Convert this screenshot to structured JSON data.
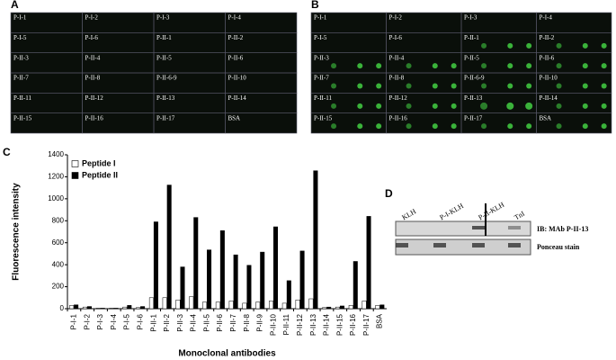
{
  "panel_a": {
    "label": "A",
    "cells": [
      "P-I-1",
      "P-I-2",
      "P-I-3",
      "P-I-4",
      "P-I-5",
      "P-I-6",
      "P-II-1",
      "P-II-2",
      "P-II-3",
      "P-II-4",
      "P-II-5",
      "P-II-6",
      "P-II-7",
      "P-II-8",
      "P-II-6-9",
      "P-II-10",
      "P-II-11",
      "P-II-12",
      "P-II-13",
      "P-II-14",
      "P-II-15",
      "P-II-16",
      "P-II-17",
      "BSA"
    ]
  },
  "panel_b": {
    "label": "B",
    "cells": [
      "P-I-1",
      "P-I-2",
      "P-I-3",
      "P-I-4",
      "P-I-5",
      "P-I-6",
      "P-II-1",
      "P-II-2",
      "P-II-3",
      "P-II-4",
      "P-II-5",
      "P-II-6",
      "P-II-7",
      "P-II-8",
      "P-II-6-9",
      "P-II-10",
      "P-II-11",
      "P-II-12",
      "P-II-13",
      "P-II-14",
      "P-II-15",
      "P-II-16",
      "P-II-17",
      "BSA"
    ]
  },
  "panel_d": {
    "label": "D",
    "lanes": [
      "KLH",
      "P-I-KLH",
      "P-II-KLH",
      "TnI"
    ],
    "rows": [
      "IB: MAb P-II-13",
      "Ponceau stain"
    ]
  },
  "chart_data": {
    "type": "bar",
    "panel_label": "C",
    "y_label": "Fluorescence intensity",
    "x_label": "Monoclonal antibodies",
    "categories": [
      "P-I-1",
      "P-I-2",
      "P-I-3",
      "P-I-4",
      "P-I-5",
      "P-I-6",
      "P-II-1",
      "P-II-2",
      "P-II-3",
      "P-II-4",
      "P-II-5",
      "P-II-6",
      "P-II-7",
      "P-II-8",
      "P-II-9",
      "P-II-10",
      "P-II-11",
      "P-II-12",
      "P-II-13",
      "P-II-14",
      "P-II-15",
      "P-II-16",
      "P-II-17",
      "BSA"
    ],
    "series": [
      {
        "name": "Peptide I",
        "color": "#ffffff",
        "values": [
          30,
          15,
          5,
          5,
          15,
          10,
          100,
          100,
          80,
          110,
          60,
          60,
          70,
          50,
          60,
          70,
          50,
          80,
          90,
          10,
          15,
          30,
          70,
          30
        ]
      },
      {
        "name": "Peptide II",
        "color": "#000000",
        "values": [
          35,
          20,
          5,
          5,
          30,
          20,
          790,
          1125,
          380,
          830,
          535,
          710,
          490,
          395,
          515,
          745,
          255,
          525,
          1255,
          15,
          25,
          430,
          840,
          35
        ]
      }
    ],
    "ylim": [
      0,
      1400
    ],
    "yticks": [
      0,
      200,
      400,
      600,
      800,
      1000,
      1200,
      1400
    ],
    "legend": "upper-left"
  }
}
